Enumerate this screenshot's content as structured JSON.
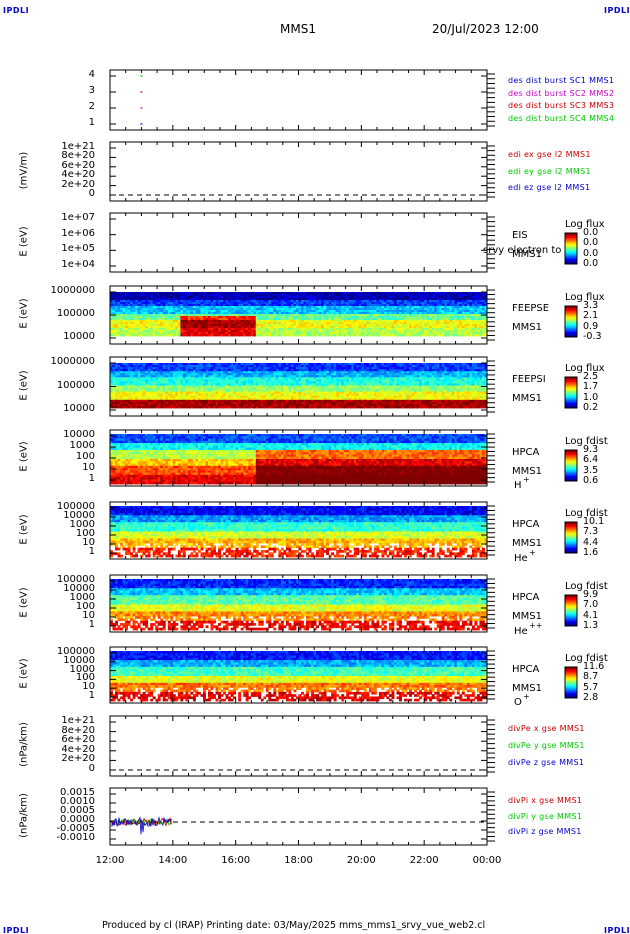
{
  "header": {
    "corner_left": "IPDLI",
    "corner_right": "IPDLI",
    "title": "MMS1",
    "date": "20/Jul/2023 12:00"
  },
  "footer": {
    "corner_left": "IPDLI",
    "corner_right": "IPDLI",
    "text": "Produced by cl (IRAP)   Printing date: 03/May/2025   mms_mms1_srvy_vue_web2.cl"
  },
  "time_axis": {
    "ticks": [
      "12:00",
      "14:00",
      "16:00",
      "18:00",
      "20:00",
      "22:00",
      "00:00"
    ],
    "range_hours": [
      12,
      24
    ]
  },
  "panels": [
    {
      "id": "fpi-burst",
      "ylabel": "",
      "yticks": [
        "4",
        "3",
        "2",
        "1"
      ],
      "legend": [
        {
          "text": "des dist burst SC1 MMS1",
          "color": "#0000c8"
        },
        {
          "text": "des dist burst SC2 MMS2",
          "color": "#c800c8"
        },
        {
          "text": "des dist burst SC3 MMS3",
          "color": "#c80000"
        },
        {
          "text": "des dist burst SC4 MMS4",
          "color": "#00c800"
        }
      ]
    },
    {
      "id": "edi-e",
      "ylabel": "(mV/m)",
      "yticks": [
        "1e+21",
        "8e+20",
        "6e+20",
        "4e+20",
        "2e+20",
        "0"
      ],
      "legend": [
        {
          "text": "edi ex gse l2 MMS1",
          "color": "#c80000"
        },
        {
          "text": "edi ey gse l2 MMS1",
          "color": "#00c800"
        },
        {
          "text": "edi ez gse l2 MMS1",
          "color": "#0000c8"
        }
      ]
    },
    {
      "id": "eis",
      "ylabel": "E (eV)",
      "yticks": [
        "1e+07",
        "1e+06",
        "1e+05",
        "1e+04"
      ],
      "side": [
        "EIS",
        "MMS1"
      ],
      "overlay": "srvy electron to",
      "colorbar": {
        "title": "Log flux",
        "values": [
          "0.0",
          "0.0",
          "0.0",
          "0.0"
        ]
      }
    },
    {
      "id": "feeps-e",
      "ylabel": "E (eV)",
      "yticks": [
        "1000000",
        "100000",
        "10000"
      ],
      "side": [
        "FEEPSE",
        "MMS1"
      ],
      "colorbar": {
        "title": "Log flux",
        "values": [
          "3.3",
          "2.1",
          "0.9",
          "-0.3"
        ]
      }
    },
    {
      "id": "feeps-i",
      "ylabel": "E (eV)",
      "yticks": [
        "1000000",
        "100000",
        "10000"
      ],
      "side": [
        "FEEPSI",
        "MMS1"
      ],
      "colorbar": {
        "title": "Log flux",
        "values": [
          "2.5",
          "1.7",
          "1.0",
          "0.2"
        ]
      }
    },
    {
      "id": "hpca-h",
      "ylabel": "E (eV)",
      "yticks": [
        "10000",
        "1000",
        "100",
        "10",
        "1"
      ],
      "side": [
        "HPCA",
        "MMS1"
      ],
      "species": "H",
      "species_sup": "+",
      "colorbar": {
        "title": "Log fdist",
        "values": [
          "9.3",
          "6.4",
          "3.5",
          "0.6"
        ]
      }
    },
    {
      "id": "hpca-he",
      "ylabel": "E (eV)",
      "yticks": [
        "100000",
        "10000",
        "1000",
        "100",
        "10",
        "1"
      ],
      "side": [
        "HPCA",
        "MMS1"
      ],
      "species": "He",
      "species_sup": "+",
      "colorbar": {
        "title": "Log fdist",
        "values": [
          "10.1",
          "7.3",
          "4.4",
          "1.6"
        ]
      }
    },
    {
      "id": "hpca-hepp",
      "ylabel": "E (eV)",
      "yticks": [
        "100000",
        "10000",
        "1000",
        "100",
        "10",
        "1"
      ],
      "side": [
        "HPCA",
        "MMS1"
      ],
      "species": "He",
      "species_sup": "++",
      "colorbar": {
        "title": "Log fdist",
        "values": [
          "9.9",
          "7.0",
          "4.1",
          "1.3"
        ]
      }
    },
    {
      "id": "hpca-o",
      "ylabel": "E (eV)",
      "yticks": [
        "100000",
        "10000",
        "1000",
        "100",
        "10",
        "1"
      ],
      "side": [
        "HPCA",
        "MMS1"
      ],
      "species": "O",
      "species_sup": "+",
      "colorbar": {
        "title": "Log fdist",
        "values": [
          "11.6",
          "8.7",
          "5.7",
          "2.8"
        ]
      }
    },
    {
      "id": "divpe",
      "ylabel": "(nPa/km)",
      "yticks": [
        "1e+21",
        "8e+20",
        "6e+20",
        "4e+20",
        "2e+20",
        "0"
      ],
      "legend": [
        {
          "text": "divPe x gse MMS1",
          "color": "#c80000"
        },
        {
          "text": "divPe y gse MMS1",
          "color": "#00c800"
        },
        {
          "text": "divPe z gse MMS1",
          "color": "#0000c8"
        }
      ]
    },
    {
      "id": "divpi",
      "ylabel": "(nPa/km)",
      "yticks": [
        "0.0015",
        "0.0010",
        "0.0005",
        "0.0000",
        "-0.0005",
        "-0.0010"
      ],
      "legend": [
        {
          "text": "divPi x gse MMS1",
          "color": "#c80000"
        },
        {
          "text": "divPi y gse MMS1",
          "color": "#00c800"
        },
        {
          "text": "divPi z gse MMS1",
          "color": "#0000c8"
        }
      ]
    }
  ],
  "chart_data": {
    "type": "heatmap",
    "title": "MMS1",
    "xlabel": "",
    "xlim": [
      "12:00",
      "00:00"
    ],
    "series": [
      {
        "name": "des dist burst SC1 MMS1",
        "values": [
          {
            "x": "13:00",
            "y": 1
          }
        ]
      },
      {
        "name": "des dist burst SC2 MMS2",
        "values": [
          {
            "x": "13:00",
            "y": 2
          }
        ]
      },
      {
        "name": "des dist burst SC3 MMS3",
        "values": [
          {
            "x": "13:00",
            "y": 3
          }
        ]
      },
      {
        "name": "des dist burst SC4 MMS4",
        "values": [
          {
            "x": "13:00",
            "y": 4
          }
        ]
      }
    ],
    "divpi_ylim": [
      -0.001,
      0.0015
    ],
    "divpi_data_end": "14:00"
  }
}
